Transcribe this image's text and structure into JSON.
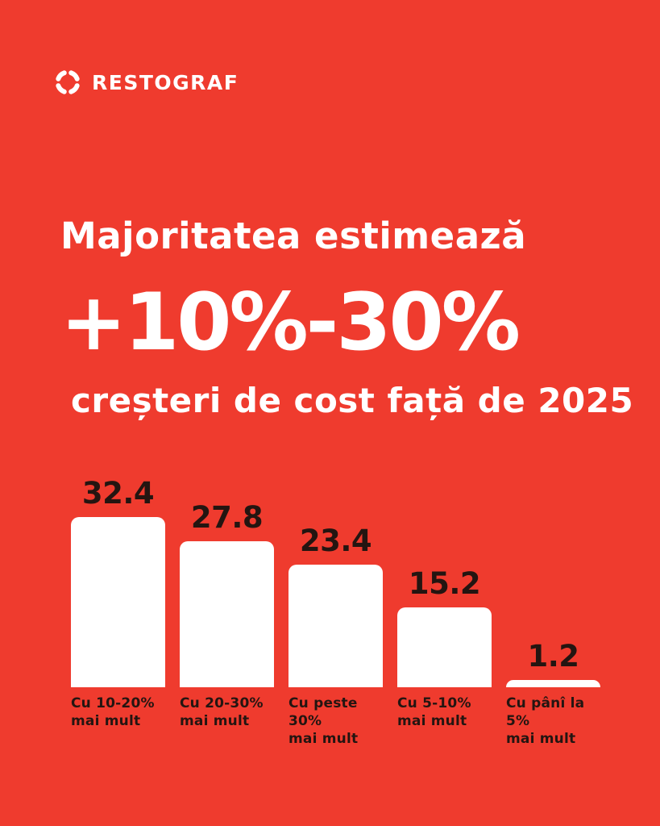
{
  "colors": {
    "background": "#EF3B2E",
    "text_light": "#FFFFFF",
    "text_dark": "#241511",
    "bar_fill": "#FFFFFF"
  },
  "logo": {
    "icon": "arc-circle-icon",
    "brand": "RESTOGRAF"
  },
  "headline": {
    "line1": "Majoritatea estimează",
    "highlight": "+10%-30%",
    "line2": "creșteri de cost față de 2025"
  },
  "chart_data": {
    "type": "bar",
    "title": "Majoritatea estimează +10%-30% creșteri de cost față de 2025",
    "categories": [
      "Cu 10-20%\nmai mult",
      "Cu 20-30%\nmai mult",
      "Cu peste 30%\nmai mult",
      "Cu 5-10%\nmai mult",
      "Cu pânî la 5%\nmai mult"
    ],
    "values": [
      32.4,
      27.8,
      23.4,
      15.2,
      1.2
    ],
    "xlabel": "",
    "ylabel": "",
    "ylim": [
      0,
      35
    ],
    "grid": false,
    "legend": false,
    "axes_visible": false,
    "bar_color": "#FFFFFF",
    "value_label_position": "above-bars",
    "value_label_color": "#241511"
  }
}
